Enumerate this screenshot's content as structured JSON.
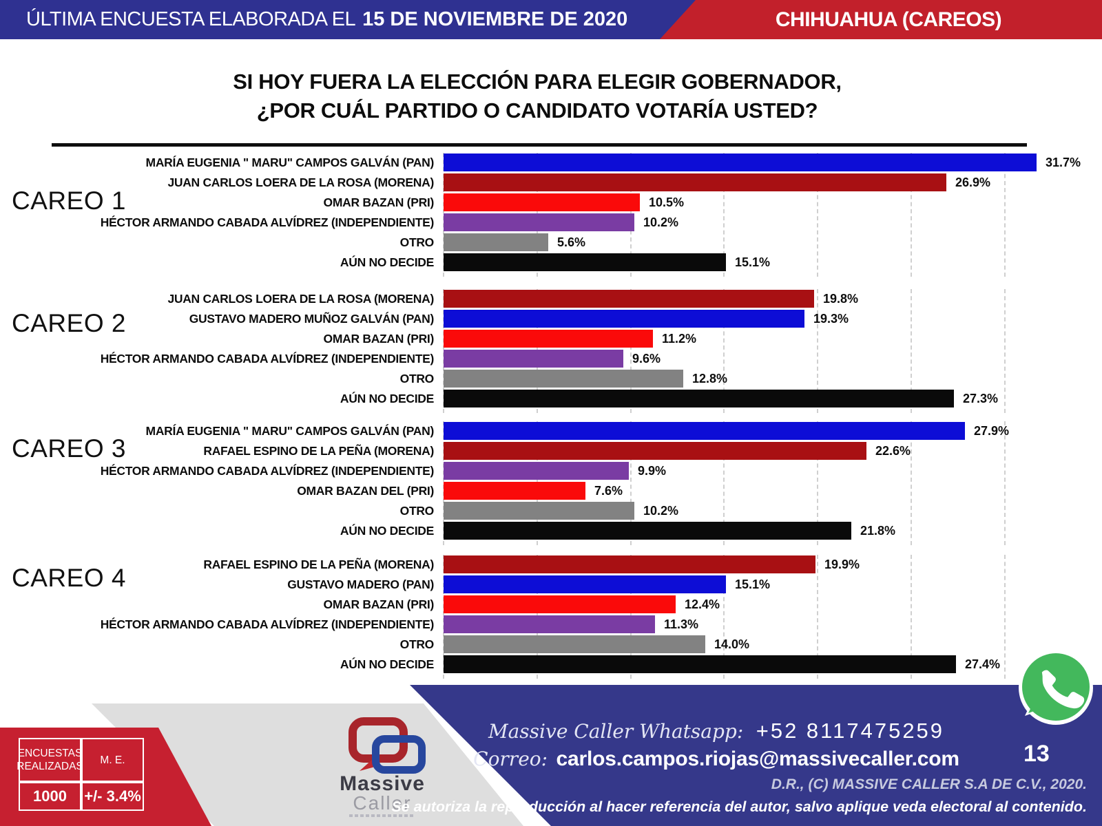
{
  "header": {
    "left_text": "ÚLTIMA ENCUESTA ELABORADA EL",
    "left_date": "15 DE NOVIEMBRE DE 2020",
    "right_text": "CHIHUAHUA (CAREOS)"
  },
  "title": {
    "line1": "SI HOY FUERA LA ELECCIÓN PARA ELEGIR GOBERNADOR,",
    "line2": "¿POR CUÁL PARTIDO O CANDIDATO VOTARÍA USTED?"
  },
  "chart_data": {
    "type": "bar",
    "orientation": "horizontal",
    "unit": "percent",
    "xlim": [
      0,
      33
    ],
    "gridlines_every_percent": 5,
    "grid": true,
    "colors": {
      "pan": "#0D0DD6",
      "morena": "#A81013",
      "pri": "#FA0A0A",
      "independiente": "#7A3CA3",
      "otro": "#828282",
      "no_decide": "#0A0A0A"
    },
    "groups": [
      {
        "name": "CAREO 1",
        "bars": [
          {
            "label": "MARÍA EUGENIA \" MARU\" CAMPOS  GALVÁN (PAN)",
            "party": "pan",
            "value": 31.7,
            "value_label": "31.7%"
          },
          {
            "label": "JUAN CARLOS LOERA DE LA ROSA (MORENA)",
            "party": "morena",
            "value": 26.9,
            "value_label": "26.9%"
          },
          {
            "label": "OMAR BAZAN (PRI)",
            "party": "pri",
            "value": 10.5,
            "value_label": "10.5%"
          },
          {
            "label": "HÉCTOR ARMANDO CABADA ALVÍDREZ (INDEPENDIENTE)",
            "party": "independiente",
            "value": 10.2,
            "value_label": "10.2%"
          },
          {
            "label": "OTRO",
            "party": "otro",
            "value": 5.6,
            "value_label": "5.6%"
          },
          {
            "label": "AÚN NO DECIDE",
            "party": "no_decide",
            "value": 15.1,
            "value_label": "15.1%"
          }
        ]
      },
      {
        "name": "CAREO 2",
        "bars": [
          {
            "label": "JUAN CARLOS LOERA DE LA ROSA (MORENA)",
            "party": "morena",
            "value": 19.8,
            "value_label": "19.8%"
          },
          {
            "label": "GUSTAVO MADERO MUÑOZ  GALVÁN (PAN)",
            "party": "pan",
            "value": 19.3,
            "value_label": "19.3%"
          },
          {
            "label": "OMAR BAZAN (PRI)",
            "party": "pri",
            "value": 11.2,
            "value_label": "11.2%"
          },
          {
            "label": "HÉCTOR ARMANDO CABADA ALVÍDREZ (INDEPENDIENTE)",
            "party": "independiente",
            "value": 9.6,
            "value_label": "9.6%"
          },
          {
            "label": "OTRO",
            "party": "otro",
            "value": 12.8,
            "value_label": "12.8%"
          },
          {
            "label": "AÚN NO DECIDE",
            "party": "no_decide",
            "value": 27.3,
            "value_label": "27.3%"
          }
        ]
      },
      {
        "name": "CAREO 3",
        "bars": [
          {
            "label": "MARÍA EUGENIA \" MARU\" CAMPOS  GALVÁN  (PAN)",
            "party": "pan",
            "value": 27.9,
            "value_label": "27.9%"
          },
          {
            "label": "RAFAEL ESPINO DE LA PEÑA (MORENA)",
            "party": "morena",
            "value": 22.6,
            "value_label": "22.6%"
          },
          {
            "label": "HÉCTOR ARMANDO CABADA ALVÍDREZ (INDEPENDIENTE)",
            "party": "independiente",
            "value": 9.9,
            "value_label": "9.9%"
          },
          {
            "label": "OMAR BAZAN DEL (PRI)",
            "party": "pri",
            "value": 7.6,
            "value_label": "7.6%"
          },
          {
            "label": "OTRO",
            "party": "otro",
            "value": 10.2,
            "value_label": "10.2%"
          },
          {
            "label": "AÚN NO DECIDE",
            "party": "no_decide",
            "value": 21.8,
            "value_label": "21.8%"
          }
        ]
      },
      {
        "name": "CAREO 4",
        "bars": [
          {
            "label": "RAFAEL ESPINO DE LA PEÑA (MORENA)",
            "party": "morena",
            "value": 19.9,
            "value_label": "19.9%"
          },
          {
            "label": "GUSTAVO MADERO (PAN)",
            "party": "pan",
            "value": 15.1,
            "value_label": "15.1%"
          },
          {
            "label": "OMAR BAZAN (PRI)",
            "party": "pri",
            "value": 12.4,
            "value_label": "12.4%"
          },
          {
            "label": "HÉCTOR ARMANDO CABADA ALVÍDREZ  (INDEPENDIENTE)",
            "party": "independiente",
            "value": 11.3,
            "value_label": "11.3%"
          },
          {
            "label": "OTRO",
            "party": "otro",
            "value": 14.0,
            "value_label": "14.0%"
          },
          {
            "label": "AÚN NO DECIDE",
            "party": "no_decide",
            "value": 27.4,
            "value_label": "27.4%"
          }
        ]
      }
    ]
  },
  "footer": {
    "stats_table": {
      "col1_header": "ENCUESTAS REALIZADAS",
      "col2_header": "M. E.",
      "col1_value": "1000",
      "col2_value": "+/- 3.4%"
    },
    "logo": {
      "line1": "Massive",
      "line2": "Caller"
    },
    "whatsapp_label": "Massive Caller Whatsapp:",
    "whatsapp_number": "+52 8117475259",
    "correo_label": "Correo:",
    "correo_value": "carlos.campos.riojas@massivecaller.com",
    "page_number": "13",
    "copyright": "D.R., (C) MASSIVE CALLER S.A DE C.V., 2020.",
    "disclaimer": "Se autoriza la reproducción al hacer referencia del autor, salvo aplique veda electoral al contenido.",
    "whatsapp_green": "#43B85C",
    "band_blue": "#35388A",
    "band_red": "#C62030"
  }
}
